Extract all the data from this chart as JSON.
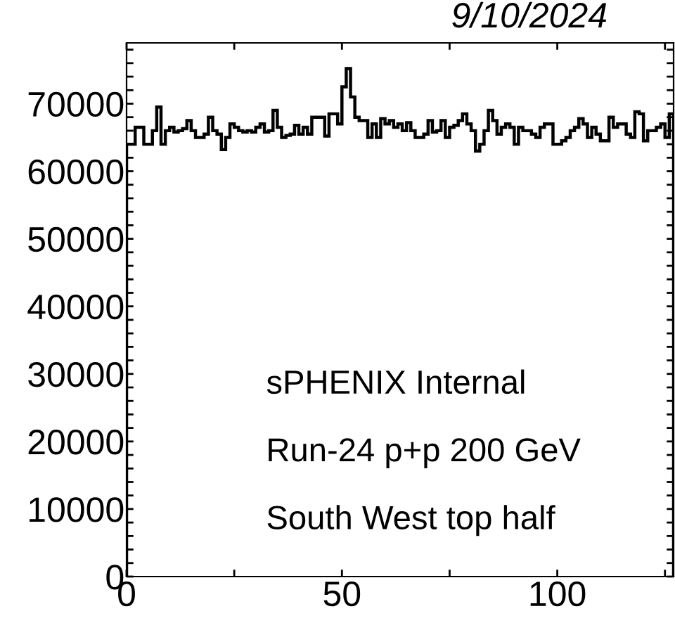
{
  "chart_data": {
    "type": "histogram",
    "bins": [
      0,
      1,
      2,
      3,
      4,
      5,
      6,
      7,
      8,
      9,
      10,
      11,
      12,
      13,
      14,
      15,
      16,
      17,
      18,
      19,
      20,
      21,
      22,
      23,
      24,
      25,
      26,
      27,
      28,
      29,
      30,
      31,
      32,
      33,
      34,
      35,
      36,
      37,
      38,
      39,
      40,
      41,
      42,
      43,
      44,
      45,
      46,
      47,
      48,
      49,
      50,
      51,
      52,
      53,
      54,
      55,
      56,
      57,
      58,
      59,
      60,
      61,
      62,
      63,
      64,
      65,
      66,
      67,
      68,
      69,
      70,
      71,
      72,
      73,
      74,
      75,
      76,
      77,
      78,
      79,
      80,
      81,
      82,
      83,
      84,
      85,
      86,
      87,
      88,
      89,
      90,
      91,
      92,
      93,
      94,
      95,
      96,
      97,
      98,
      99,
      100,
      101,
      102,
      103,
      104,
      105,
      106,
      107,
      108,
      109,
      110,
      111,
      112,
      113,
      114,
      115,
      116,
      117,
      118,
      119,
      120,
      121,
      122,
      123,
      124,
      125,
      126,
      127
    ],
    "values": [
      64000,
      64000,
      66500,
      66500,
      64000,
      64000,
      66000,
      69500,
      64000,
      66000,
      66500,
      65800,
      66000,
      66300,
      67500,
      66000,
      65000,
      65000,
      65500,
      68000,
      66000,
      65500,
      63200,
      65000,
      67000,
      66500,
      66000,
      65800,
      66000,
      65800,
      66500,
      67000,
      65800,
      66000,
      69000,
      66500,
      65000,
      65300,
      65500,
      66800,
      65500,
      66500,
      65500,
      68000,
      68000,
      68000,
      65200,
      68500,
      68500,
      67000,
      72500,
      75200,
      71000,
      68000,
      67500,
      67500,
      65000,
      67000,
      65000,
      67800,
      67000,
      67500,
      66500,
      67000,
      66000,
      67200,
      66000,
      65000,
      65000,
      65500,
      67500,
      65800,
      66000,
      67500,
      65000,
      66500,
      66800,
      67500,
      68500,
      67000,
      66000,
      63000,
      64000,
      66000,
      69000,
      67500,
      65500,
      66500,
      67000,
      66500,
      64000,
      66500,
      66000,
      66000,
      65500,
      65000,
      66500,
      67000,
      67000,
      64000,
      64000,
      64500,
      65000,
      66000,
      66500,
      67800,
      67000,
      65000,
      66500,
      65500,
      64500,
      64500,
      68000,
      66500,
      67000,
      67000,
      65500,
      65000,
      68800,
      68500,
      64500,
      66000,
      66000,
      66500,
      67000,
      65000,
      68500
    ],
    "color": "#000000",
    "xlim": [
      0,
      127
    ],
    "ylim": [
      0,
      79000
    ],
    "xticks": [
      0,
      {
        "value": 25,
        "label": null
      },
      50,
      {
        "value": 75,
        "label": null
      },
      100,
      {
        "value": 125,
        "label": null
      }
    ],
    "yticks": [
      0,
      {
        "value": 2000,
        "label": null
      },
      {
        "value": 4000,
        "label": null
      },
      {
        "value": 6000,
        "label": null
      },
      {
        "value": 8000,
        "label": null
      },
      10000,
      {
        "value": 12000,
        "label": null
      },
      {
        "value": 14000,
        "label": null
      },
      {
        "value": 16000,
        "label": null
      },
      {
        "value": 18000,
        "label": null
      },
      20000,
      {
        "value": 22000,
        "label": null
      },
      {
        "value": 24000,
        "label": null
      },
      {
        "value": 26000,
        "label": null
      },
      {
        "value": 28000,
        "label": null
      },
      30000,
      {
        "value": 32000,
        "label": null
      },
      {
        "value": 34000,
        "label": null
      },
      {
        "value": 36000,
        "label": null
      },
      {
        "value": 38000,
        "label": null
      },
      40000,
      {
        "value": 42000,
        "label": null
      },
      {
        "value": 44000,
        "label": null
      },
      {
        "value": 46000,
        "label": null
      },
      {
        "value": 48000,
        "label": null
      },
      50000,
      {
        "value": 52000,
        "label": null
      },
      {
        "value": 54000,
        "label": null
      },
      {
        "value": 56000,
        "label": null
      },
      {
        "value": 58000,
        "label": null
      },
      60000,
      {
        "value": 62000,
        "label": null
      },
      {
        "value": 64000,
        "label": null
      },
      {
        "value": 66000,
        "label": null
      },
      {
        "value": 68000,
        "label": null
      },
      70000,
      {
        "value": 72000,
        "label": null
      },
      {
        "value": 74000,
        "label": null
      },
      {
        "value": 76000,
        "label": null
      },
      {
        "value": 78000,
        "label": null
      }
    ],
    "annotations": [
      "9/10/2024",
      "sPHENIX Internal",
      "Run-24 p+p 200 GeV",
      "South West top half"
    ]
  }
}
